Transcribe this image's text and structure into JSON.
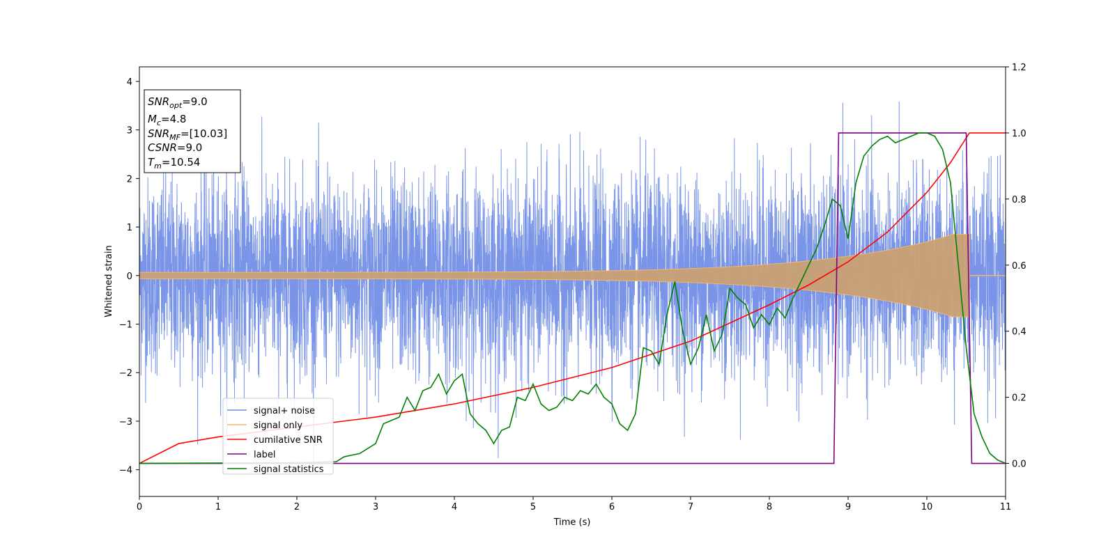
{
  "chart_data": {
    "type": "line",
    "xlabel": "Time (s)",
    "ylabel": "Whitened strain",
    "xlim": [
      0,
      11
    ],
    "ylim": [
      -4.55,
      4.3
    ],
    "y2lim": [
      -0.1,
      1.2
    ],
    "x_ticks": [
      "0",
      "1",
      "2",
      "3",
      "4",
      "5",
      "6",
      "7",
      "8",
      "9",
      "10",
      "11"
    ],
    "y_ticks": [
      "4",
      "3",
      "2",
      "1",
      "0",
      "−1",
      "−2",
      "−3",
      "−4"
    ],
    "y2_ticks": [
      "1.2",
      "1.0",
      "0.8",
      "0.6",
      "0.4",
      "0.2",
      "0.0"
    ],
    "grid": false,
    "legend_position": "lower-left",
    "colors": {
      "noise": "#6b8ae6",
      "signal": "#f5b66b",
      "csnr": "#ff0000",
      "label": "#800080",
      "stat": "#008000"
    },
    "annotation": {
      "lines": [
        {
          "base": "SNR",
          "sub": "opt",
          "rest": "=9.0"
        },
        {
          "base": "M",
          "sub": "c",
          "rest": "=4.8"
        },
        {
          "base": "SNR",
          "sub": "MF",
          "rest": "=[10.03]"
        },
        {
          "base": "CSNR",
          "sub": "",
          "rest": "=9.0"
        },
        {
          "base": "T",
          "sub": "m",
          "rest": "=10.54"
        }
      ]
    },
    "series": [
      {
        "name": "signal+ noise",
        "axis": "left",
        "style": "noise",
        "envelope_std": 1.0,
        "approx_range": [
          -4.2,
          3.9
        ]
      },
      {
        "name": "signal only",
        "axis": "left",
        "style": "chirp",
        "end_time": 10.54,
        "amplitude_start": 0.05,
        "amplitude_end": 0.85
      },
      {
        "name": "cumilative SNR",
        "axis": "right",
        "x": [
          0,
          0.5,
          1,
          2,
          3,
          4,
          5,
          6,
          7,
          8,
          8.5,
          9,
          9.5,
          10,
          10.3,
          10.54,
          11
        ],
        "values": [
          0.0,
          0.06,
          0.08,
          0.11,
          0.14,
          0.18,
          0.23,
          0.29,
          0.37,
          0.48,
          0.54,
          0.61,
          0.7,
          0.82,
          0.91,
          1.0,
          1.0
        ]
      },
      {
        "name": "label",
        "axis": "right",
        "x": [
          0,
          8.82,
          8.88,
          10.5,
          10.57,
          11
        ],
        "values": [
          0,
          0,
          1,
          1,
          0,
          0
        ]
      },
      {
        "name": "signal statistics",
        "axis": "right",
        "x": [
          0,
          1,
          2,
          2.5,
          2.6,
          2.8,
          3,
          3.1,
          3.3,
          3.4,
          3.5,
          3.6,
          3.7,
          3.8,
          3.9,
          4,
          4.1,
          4.2,
          4.3,
          4.4,
          4.5,
          4.6,
          4.7,
          4.8,
          4.9,
          5,
          5.1,
          5.2,
          5.3,
          5.4,
          5.5,
          5.6,
          5.7,
          5.8,
          5.9,
          6,
          6.1,
          6.2,
          6.3,
          6.4,
          6.5,
          6.6,
          6.7,
          6.8,
          6.9,
          7,
          7.1,
          7.2,
          7.3,
          7.4,
          7.5,
          7.6,
          7.7,
          7.8,
          7.9,
          8,
          8.1,
          8.2,
          8.3,
          8.4,
          8.5,
          8.6,
          8.7,
          8.8,
          8.9,
          9,
          9.1,
          9.2,
          9.3,
          9.4,
          9.5,
          9.6,
          9.7,
          9.8,
          9.9,
          10,
          10.1,
          10.2,
          10.3,
          10.4,
          10.5,
          10.6,
          10.7,
          10.8,
          10.9,
          11
        ],
        "values": [
          0,
          0.001,
          0.002,
          0.005,
          0.02,
          0.03,
          0.06,
          0.12,
          0.14,
          0.2,
          0.16,
          0.22,
          0.23,
          0.27,
          0.21,
          0.25,
          0.27,
          0.15,
          0.12,
          0.1,
          0.06,
          0.1,
          0.11,
          0.2,
          0.19,
          0.24,
          0.18,
          0.16,
          0.17,
          0.2,
          0.19,
          0.22,
          0.21,
          0.24,
          0.2,
          0.18,
          0.12,
          0.1,
          0.15,
          0.35,
          0.34,
          0.3,
          0.45,
          0.55,
          0.4,
          0.3,
          0.35,
          0.45,
          0.34,
          0.39,
          0.53,
          0.5,
          0.48,
          0.41,
          0.45,
          0.42,
          0.47,
          0.44,
          0.5,
          0.55,
          0.6,
          0.65,
          0.72,
          0.8,
          0.78,
          0.68,
          0.85,
          0.93,
          0.96,
          0.98,
          0.99,
          0.97,
          0.98,
          0.99,
          1.0,
          1.0,
          0.99,
          0.95,
          0.85,
          0.6,
          0.35,
          0.15,
          0.08,
          0.03,
          0.01,
          0.0
        ]
      }
    ]
  }
}
